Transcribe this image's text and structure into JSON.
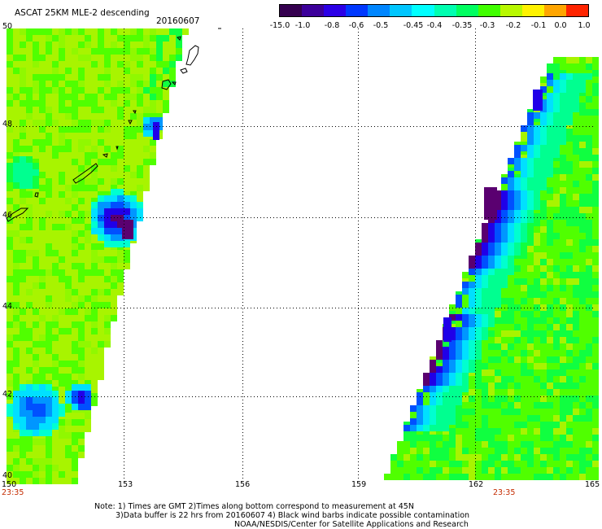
{
  "header": {
    "title": "ASCAT 25KM MLE-2 descending",
    "date": "20160607"
  },
  "colorbar": {
    "labels": [
      "-15.0",
      "-1.0",
      "-0.8",
      "-0.6",
      "-0.5",
      "-0.45",
      "-0.4",
      "-0.35",
      "-0.3",
      "-0.2",
      "-0.1",
      "0.0",
      "1.0"
    ],
    "colors": [
      "#35004f",
      "#3c009a",
      "#2b00e6",
      "#0038ff",
      "#0086ff",
      "#00c6ff",
      "#00ffff",
      "#00ffb0",
      "#00ff60",
      "#40ff00",
      "#b8f800",
      "#fff200",
      "#ffa500",
      "#ff2400"
    ]
  },
  "map": {
    "lon_labels": [
      "150",
      "153",
      "156",
      "159",
      "162",
      "165"
    ],
    "lat_labels": [
      "50",
      "48",
      "46",
      "44",
      "42",
      "40"
    ],
    "times": [
      "23:35",
      "23:35"
    ]
  },
  "notes": {
    "line1": "Note: 1) Times are GMT 2)Times along bottom correspond to measurement at 45N",
    "line2": "3)Data buffer is 22 hrs from 20160607 4) Black wind barbs indicate possible contamination",
    "line3": "NOAA/NESDIS/Center for Satellite Applications and Research"
  }
}
